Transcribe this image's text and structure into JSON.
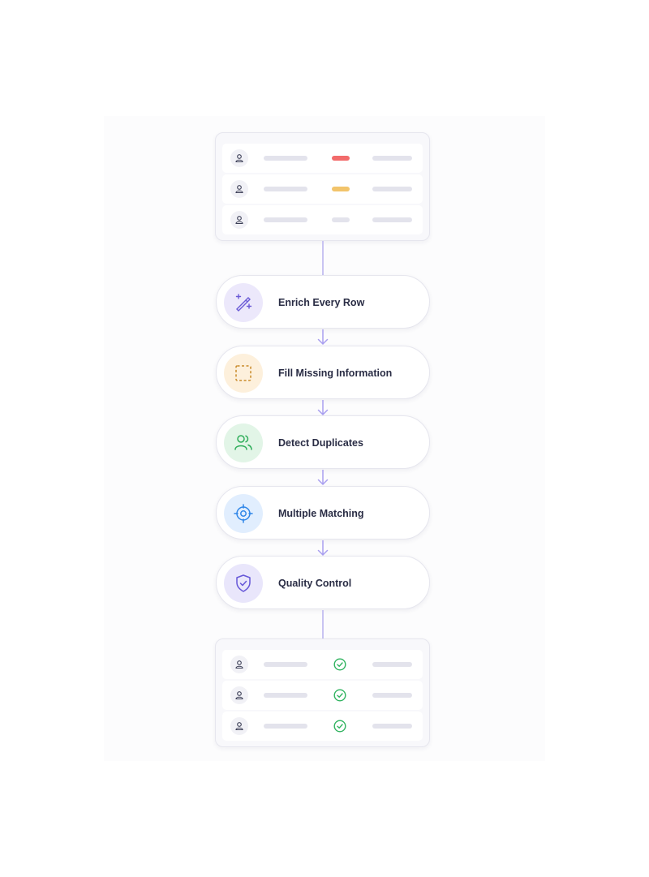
{
  "input_table": {
    "rows": [
      {
        "status_color": "#f26b6b"
      },
      {
        "status_color": "#f2c46b"
      },
      {
        "status_color": "#e3e3ec"
      }
    ]
  },
  "steps": [
    {
      "label": "Enrich Every Row",
      "icon": "magic-wand-icon",
      "bg": "#ece8fb",
      "color": "#6b5bd6"
    },
    {
      "label": "Fill Missing Information",
      "icon": "dashed-square-icon",
      "bg": "#fdf0dc",
      "color": "#c98a2a"
    },
    {
      "label": "Detect Duplicates",
      "icon": "users-icon",
      "bg": "#e2f5e7",
      "color": "#2fae5a"
    },
    {
      "label": "Multiple Matching",
      "icon": "crosshair-icon",
      "bg": "#e1eefe",
      "color": "#2f86e8"
    },
    {
      "label": "Quality Control",
      "icon": "shield-check-icon",
      "bg": "#e9e6fb",
      "color": "#6657d8"
    }
  ],
  "output_table": {
    "rows": [
      {
        "status": "check"
      },
      {
        "status": "check"
      },
      {
        "status": "check"
      }
    ],
    "check_color": "#2fb35f"
  },
  "connector_color": "#a99ff0"
}
